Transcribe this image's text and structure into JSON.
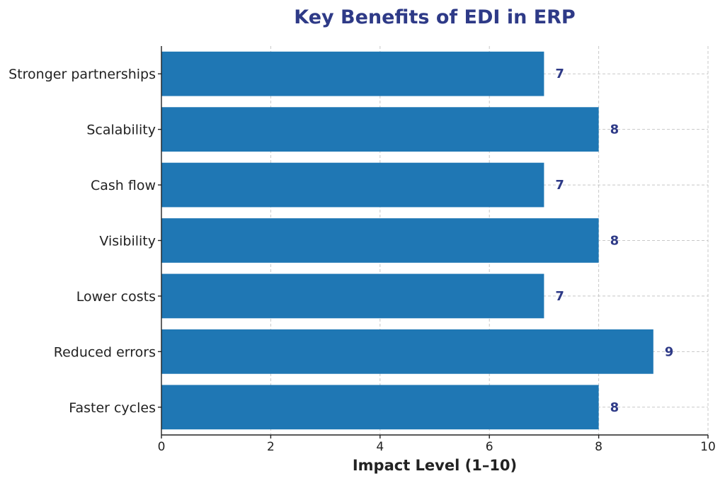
{
  "chart_data": {
    "type": "bar",
    "orientation": "horizontal",
    "title": "Key Benefits of EDI in ERP",
    "xlabel": "Impact Level (1–10)",
    "ylabel": "",
    "categories": [
      "Faster cycles",
      "Reduced errors",
      "Lower costs",
      "Visibility",
      "Cash flow",
      "Scalability",
      "Stronger partnerships"
    ],
    "values": [
      8,
      9,
      7,
      8,
      7,
      8,
      7
    ],
    "value_labels": [
      "8",
      "9",
      "7",
      "8",
      "7",
      "8",
      "7"
    ],
    "xlim": [
      0,
      10
    ],
    "x_ticks": [
      0,
      2,
      4,
      6,
      8,
      10
    ],
    "x_tick_labels": [
      "0",
      "2",
      "4",
      "6",
      "8",
      "10"
    ],
    "grid": true,
    "bar_color": "#1f77b4",
    "value_label_color": "#2e3a87",
    "title_color": "#2e3a87"
  }
}
